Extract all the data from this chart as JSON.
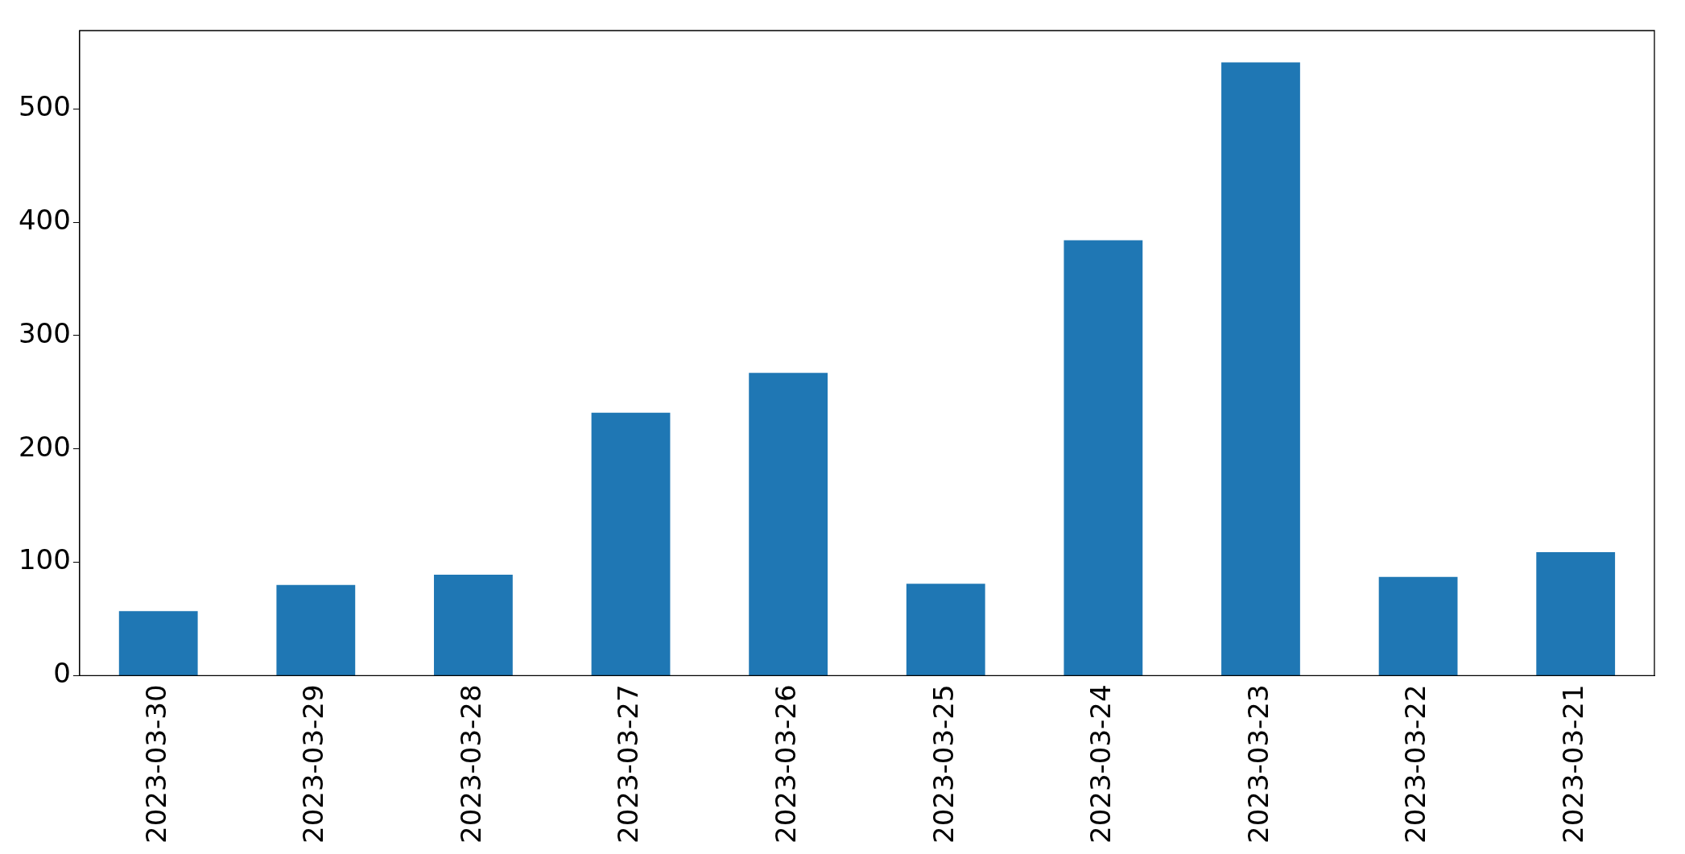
{
  "chart_data": {
    "type": "bar",
    "categories": [
      "2023-03-30",
      "2023-03-29",
      "2023-03-28",
      "2023-03-27",
      "2023-03-26",
      "2023-03-25",
      "2023-03-24",
      "2023-03-23",
      "2023-03-22",
      "2023-03-21"
    ],
    "values": [
      57,
      80,
      89,
      232,
      267,
      81,
      384,
      541,
      87,
      109
    ],
    "color": "#1f77b4",
    "ylim": [
      0,
      569
    ],
    "yticks": [
      0,
      100,
      200,
      300,
      400,
      500
    ],
    "grid": false,
    "legend": false
  }
}
